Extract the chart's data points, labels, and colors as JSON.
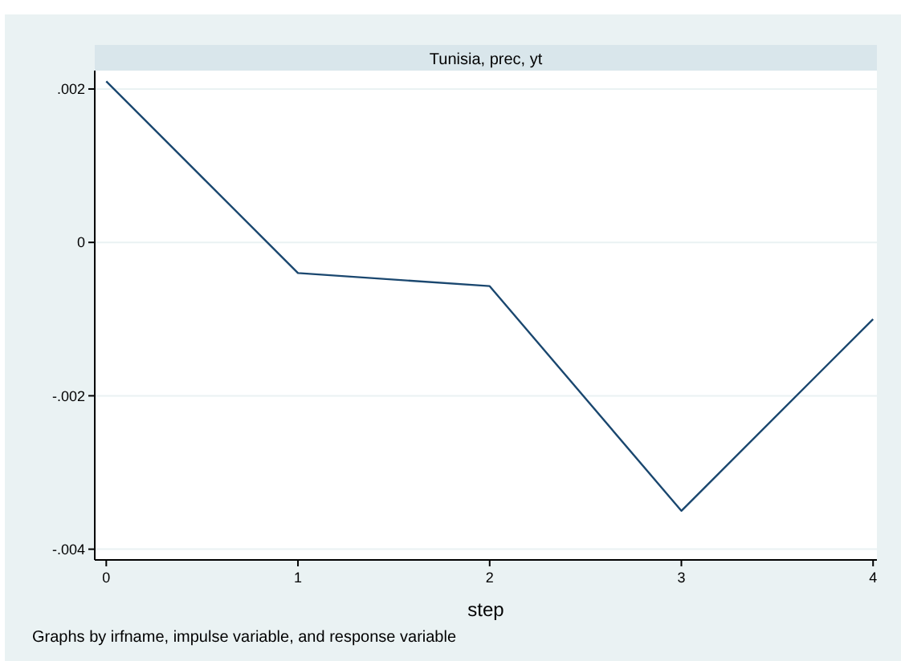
{
  "chart_data": {
    "type": "line",
    "title": "Tunisia, prec, yt",
    "xlabel": "step",
    "annotations": [
      "Graphs by irfname, impulse variable, and response variable"
    ],
    "x": [
      0,
      1,
      2,
      3,
      4
    ],
    "series": [
      {
        "color": "#1a476f",
        "values": [
          0.0021,
          -0.0004,
          -0.00057,
          -0.0035,
          -0.001
        ]
      }
    ],
    "xlim": [
      -0.06,
      4.02
    ],
    "xticks": [
      0,
      1,
      2,
      3,
      4
    ],
    "ylim": [
      -0.00414,
      0.00224
    ],
    "yticks": [
      {
        "value": -0.004,
        "label": "-.004"
      },
      {
        "value": -0.002,
        "label": "-.002"
      },
      0,
      {
        "value": 0.002,
        "label": ".002"
      }
    ],
    "grid": "y",
    "line_style": "solid",
    "marker": "none"
  }
}
